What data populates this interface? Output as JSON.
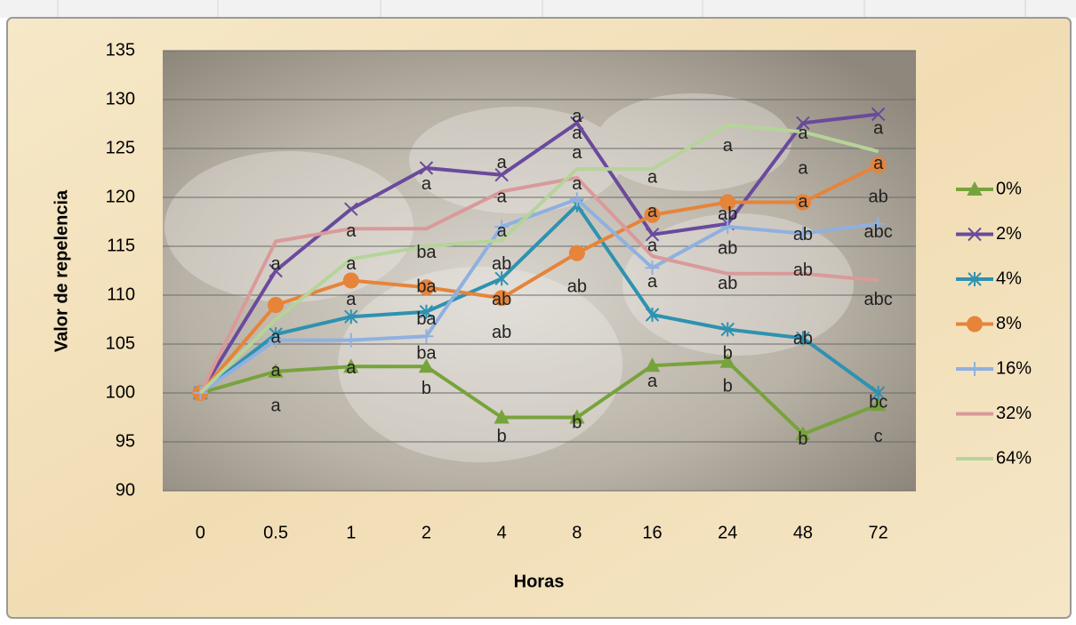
{
  "chart_data": {
    "type": "line",
    "x_label": "Horas",
    "y_label": "Valor de repelencia",
    "categories": [
      "0",
      "0.5",
      "1",
      "2",
      "4",
      "8",
      "16",
      "24",
      "48",
      "72"
    ],
    "ylim": [
      90,
      135
    ],
    "yticks": [
      90,
      95,
      100,
      105,
      110,
      115,
      120,
      125,
      130,
      135
    ],
    "grid": true,
    "legend": "right",
    "series": [
      {
        "name": "0%",
        "color": "#77a33c",
        "marker": "triangle",
        "values": [
          100,
          102.2,
          102.7,
          102.7,
          97.5,
          97.5,
          102.8,
          103.2,
          95.8,
          98.8
        ]
      },
      {
        "name": "2%",
        "color": "#6a4a9c",
        "marker": "x",
        "values": [
          100,
          112.5,
          118.8,
          123,
          122.3,
          127.6,
          116.2,
          117.3,
          127.6,
          128.5
        ]
      },
      {
        "name": "4%",
        "color": "#2e92b0",
        "marker": "asterisk",
        "values": [
          100,
          106,
          107.8,
          108.3,
          111.7,
          119.2,
          108,
          106.5,
          105.6,
          100
        ]
      },
      {
        "name": "8%",
        "color": "#e6843a",
        "marker": "circle",
        "values": [
          100,
          109,
          111.5,
          110.8,
          109.7,
          114.3,
          118.2,
          119.5,
          119.5,
          123.3
        ]
      },
      {
        "name": "16%",
        "color": "#8fb0e0",
        "marker": "plus",
        "values": [
          100,
          105.4,
          105.4,
          105.8,
          117,
          119.8,
          112.8,
          117,
          116.3,
          117.3
        ]
      },
      {
        "name": "32%",
        "color": "#d99a9a",
        "marker": "none",
        "values": [
          100,
          115.5,
          116.8,
          116.8,
          120.6,
          122,
          114,
          112.2,
          112.2,
          111.5
        ]
      },
      {
        "name": "64%",
        "color": "#b5d49a",
        "marker": "none",
        "values": [
          100,
          107.5,
          113.7,
          115,
          115.6,
          122.9,
          122.9,
          127.4,
          126.7,
          124.7
        ]
      }
    ],
    "annotations": [
      {
        "text": "a",
        "x": "0.5",
        "y": 113.1
      },
      {
        "text": "a",
        "x": "0.5",
        "y": 105.6
      },
      {
        "text": "a",
        "x": "0.5",
        "y": 102.2
      },
      {
        "text": "a",
        "x": "0.5",
        "y": 98.6
      },
      {
        "text": "a",
        "x": "1",
        "y": 116.5
      },
      {
        "text": "a",
        "x": "1",
        "y": 113.1
      },
      {
        "text": "a",
        "x": "1",
        "y": 109.5
      },
      {
        "text": "a",
        "x": "1",
        "y": 102.5
      },
      {
        "text": "a",
        "x": "2",
        "y": 121.3
      },
      {
        "text": "ba",
        "x": "2",
        "y": 114.3
      },
      {
        "text": "ba",
        "x": "2",
        "y": 110.8
      },
      {
        "text": "ba",
        "x": "2",
        "y": 107.5
      },
      {
        "text": "ba",
        "x": "2",
        "y": 104
      },
      {
        "text": "b",
        "x": "2",
        "y": 100.4
      },
      {
        "text": "a",
        "x": "4",
        "y": 123.5
      },
      {
        "text": "a",
        "x": "4",
        "y": 120
      },
      {
        "text": "a",
        "x": "4",
        "y": 116.5
      },
      {
        "text": "ab",
        "x": "4",
        "y": 113.1
      },
      {
        "text": "ab",
        "x": "4",
        "y": 109.5
      },
      {
        "text": "ab",
        "x": "4",
        "y": 106.1
      },
      {
        "text": "b",
        "x": "4",
        "y": 95.5
      },
      {
        "text": "a",
        "x": "8",
        "y": 128.2
      },
      {
        "text": "a",
        "x": "8",
        "y": 126.5
      },
      {
        "text": "a",
        "x": "8",
        "y": 124.5
      },
      {
        "text": "a",
        "x": "8",
        "y": 121.3
      },
      {
        "text": "ab",
        "x": "8",
        "y": 110.8
      },
      {
        "text": "b",
        "x": "8",
        "y": 96.9
      },
      {
        "text": "a",
        "x": "16",
        "y": 122
      },
      {
        "text": "a",
        "x": "16",
        "y": 118.5
      },
      {
        "text": "a",
        "x": "16",
        "y": 115
      },
      {
        "text": "a",
        "x": "16",
        "y": 111.3
      },
      {
        "text": "a",
        "x": "16",
        "y": 101.1
      },
      {
        "text": "a",
        "x": "24",
        "y": 125.2
      },
      {
        "text": "ab",
        "x": "24",
        "y": 118.2
      },
      {
        "text": "ab",
        "x": "24",
        "y": 114.7
      },
      {
        "text": "ab",
        "x": "24",
        "y": 111.1
      },
      {
        "text": "b",
        "x": "24",
        "y": 104
      },
      {
        "text": "b",
        "x": "24",
        "y": 100.6
      },
      {
        "text": "a",
        "x": "48",
        "y": 126.5
      },
      {
        "text": "a",
        "x": "48",
        "y": 122.9
      },
      {
        "text": "a",
        "x": "48",
        "y": 119.5
      },
      {
        "text": "ab",
        "x": "48",
        "y": 116.1
      },
      {
        "text": "ab",
        "x": "48",
        "y": 112.5
      },
      {
        "text": "ab",
        "x": "48",
        "y": 105.5
      },
      {
        "text": "b",
        "x": "48",
        "y": 95.2
      },
      {
        "text": "a",
        "x": "72",
        "y": 127
      },
      {
        "text": "a",
        "x": "72",
        "y": 123.4
      },
      {
        "text": "ab",
        "x": "72",
        "y": 120
      },
      {
        "text": "abc",
        "x": "72",
        "y": 116.4
      },
      {
        "text": "abc",
        "x": "72",
        "y": 109.5
      },
      {
        "text": "bc",
        "x": "72",
        "y": 99
      },
      {
        "text": "c",
        "x": "72",
        "y": 95.5
      }
    ]
  }
}
